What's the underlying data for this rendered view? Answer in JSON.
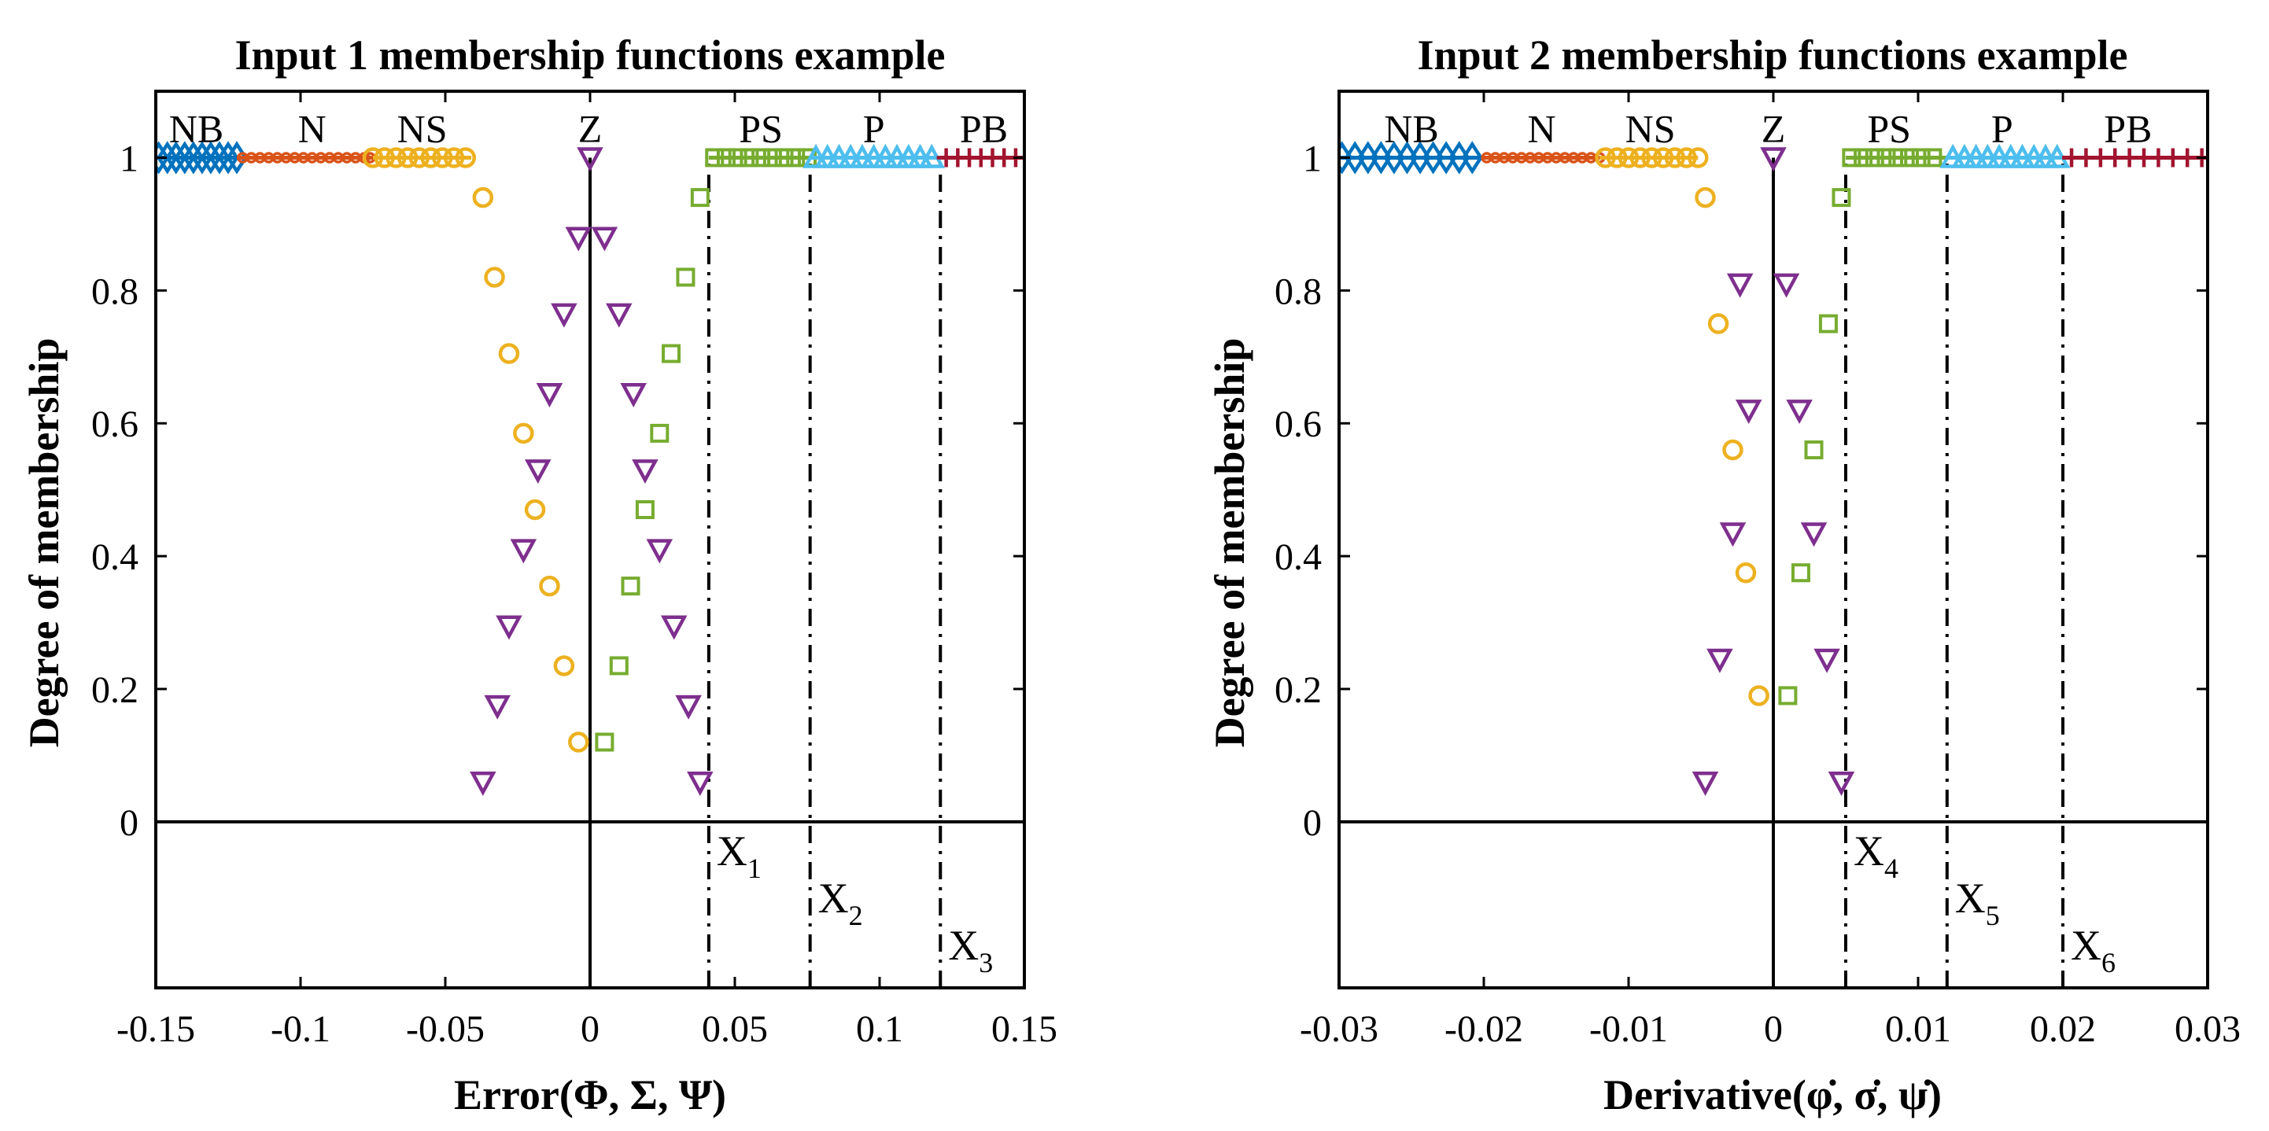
{
  "chart_data": [
    {
      "type": "scatter",
      "title": "Input 1 membership functions example",
      "xlabel_text": "Error",
      "xlabel_args": "(Φ, Σ, Ψ)",
      "ylabel": "Degree of membership",
      "xlim": [
        -0.15,
        0.15
      ],
      "ylim": [
        -0.25,
        1.1
      ],
      "x_ticks": [
        -0.15,
        -0.1,
        -0.05,
        0,
        0.05,
        0.1,
        0.15
      ],
      "x_tick_labels": [
        "-0.15",
        "-0.1",
        "-0.05",
        "0",
        "0.05",
        "0.1",
        "0.15"
      ],
      "y_ticks": [
        0,
        0.2,
        0.4,
        0.6,
        0.8,
        1
      ],
      "y_tick_labels": [
        "0",
        "0.2",
        "0.4",
        "0.6",
        "0.8",
        "1"
      ],
      "reference_lines": [
        {
          "label": "X",
          "sub": "1",
          "x": 0.041
        },
        {
          "label": "X",
          "sub": "2",
          "x": 0.076
        },
        {
          "label": "X",
          "sub": "3",
          "x": 0.121
        }
      ],
      "mf_labels": [
        {
          "text": "NB",
          "x": -0.136
        },
        {
          "text": "N",
          "x": -0.096
        },
        {
          "text": "NS",
          "x": -0.058
        },
        {
          "text": "Z",
          "x": 0.0
        },
        {
          "text": "PS",
          "x": 0.059
        },
        {
          "text": "P",
          "x": 0.098
        },
        {
          "text": "PB",
          "x": 0.136
        }
      ],
      "series": [
        {
          "name": "NB",
          "marker": "diamond",
          "color": "#0072BD",
          "line": [
            -0.15,
            -0.122
          ],
          "points": [
            [
              -0.149,
              1
            ],
            [
              -0.146,
              1
            ],
            [
              -0.143,
              1
            ],
            [
              -0.14,
              1
            ],
            [
              -0.137,
              1
            ],
            [
              -0.134,
              1
            ],
            [
              -0.131,
              1
            ],
            [
              -0.128,
              1
            ],
            [
              -0.125,
              1
            ],
            [
              -0.122,
              1
            ]
          ]
        },
        {
          "name": "N",
          "marker": "dot",
          "color": "#D95319",
          "line": [
            -0.122,
            -0.075
          ],
          "points": [
            [
              -0.12,
              1
            ],
            [
              -0.117,
              1
            ],
            [
              -0.114,
              1
            ],
            [
              -0.111,
              1
            ],
            [
              -0.108,
              1
            ],
            [
              -0.105,
              1
            ],
            [
              -0.102,
              1
            ],
            [
              -0.099,
              1
            ],
            [
              -0.096,
              1
            ],
            [
              -0.093,
              1
            ],
            [
              -0.09,
              1
            ],
            [
              -0.087,
              1
            ],
            [
              -0.084,
              1
            ],
            [
              -0.081,
              1
            ],
            [
              -0.078,
              1
            ],
            [
              -0.076,
              1
            ]
          ]
        },
        {
          "name": "NS",
          "marker": "circle",
          "color": "#EDB120",
          "line": [
            -0.075,
            -0.041
          ],
          "points": [
            [
              -0.075,
              1
            ],
            [
              -0.071,
              1
            ],
            [
              -0.067,
              1
            ],
            [
              -0.063,
              1
            ],
            [
              -0.059,
              1
            ],
            [
              -0.055,
              1
            ],
            [
              -0.051,
              1
            ],
            [
              -0.047,
              1
            ],
            [
              -0.043,
              1
            ],
            [
              -0.037,
              0.94
            ],
            [
              -0.033,
              0.82
            ],
            [
              -0.028,
              0.705
            ],
            [
              -0.023,
              0.585
            ],
            [
              -0.019,
              0.47
            ],
            [
              -0.014,
              0.355
            ],
            [
              -0.009,
              0.235
            ],
            [
              -0.004,
              0.12
            ]
          ]
        },
        {
          "name": "Z",
          "marker": "triangle-down",
          "color": "#7E2F8E",
          "line": null,
          "points": [
            [
              0,
              1
            ],
            [
              -0.004,
              0.88
            ],
            [
              0.005,
              0.88
            ],
            [
              -0.009,
              0.765
            ],
            [
              0.01,
              0.765
            ],
            [
              -0.014,
              0.645
            ],
            [
              0.015,
              0.645
            ],
            [
              -0.018,
              0.53
            ],
            [
              0.019,
              0.53
            ],
            [
              -0.023,
              0.41
            ],
            [
              0.024,
              0.41
            ],
            [
              -0.028,
              0.295
            ],
            [
              0.029,
              0.295
            ],
            [
              -0.032,
              0.175
            ],
            [
              0.034,
              0.175
            ],
            [
              -0.037,
              0.06
            ],
            [
              0.038,
              0.06
            ]
          ]
        },
        {
          "name": "PS",
          "marker": "square",
          "color": "#77AC30",
          "line": [
            0.041,
            0.076
          ],
          "points": [
            [
              0.005,
              0.12
            ],
            [
              0.01,
              0.235
            ],
            [
              0.014,
              0.355
            ],
            [
              0.019,
              0.47
            ],
            [
              0.024,
              0.585
            ],
            [
              0.028,
              0.705
            ],
            [
              0.033,
              0.82
            ],
            [
              0.038,
              0.94
            ],
            [
              0.043,
              1
            ],
            [
              0.047,
              1
            ],
            [
              0.051,
              1
            ],
            [
              0.055,
              1
            ],
            [
              0.059,
              1
            ],
            [
              0.063,
              1
            ],
            [
              0.067,
              1
            ],
            [
              0.071,
              1
            ],
            [
              0.075,
              1
            ]
          ]
        },
        {
          "name": "P",
          "marker": "triangle-up",
          "color": "#4DBEEE",
          "line": [
            0.076,
            0.121
          ],
          "points": [
            [
              0.078,
              1
            ],
            [
              0.082,
              1
            ],
            [
              0.086,
              1
            ],
            [
              0.09,
              1
            ],
            [
              0.094,
              1
            ],
            [
              0.098,
              1
            ],
            [
              0.102,
              1
            ],
            [
              0.106,
              1
            ],
            [
              0.11,
              1
            ],
            [
              0.114,
              1
            ],
            [
              0.118,
              1
            ]
          ]
        },
        {
          "name": "PB",
          "marker": "plus",
          "color": "#A2142F",
          "line": [
            0.121,
            0.154
          ],
          "points": [
            [
              0.123,
              1
            ],
            [
              0.127,
              1
            ],
            [
              0.131,
              1
            ],
            [
              0.135,
              1
            ],
            [
              0.139,
              1
            ],
            [
              0.143,
              1
            ],
            [
              0.147,
              1
            ],
            [
              0.151,
              1
            ]
          ]
        }
      ]
    },
    {
      "type": "scatter",
      "title": "Input 2 membership functions example",
      "xlabel_text": "Derivative",
      "xlabel_args": "(φ̇, σ̇, ψ̇)",
      "ylabel": "Degree of membership",
      "xlim": [
        -0.03,
        0.03
      ],
      "ylim": [
        -0.25,
        1.1
      ],
      "x_ticks": [
        -0.03,
        -0.02,
        -0.01,
        0,
        0.01,
        0.02,
        0.03
      ],
      "x_tick_labels": [
        "-0.03",
        "-0.02",
        "-0.01",
        "0",
        "0.01",
        "0.02",
        "0.03"
      ],
      "y_ticks": [
        0,
        0.2,
        0.4,
        0.6,
        0.8,
        1
      ],
      "y_tick_labels": [
        "0",
        "0.2",
        "0.4",
        "0.6",
        "0.8",
        "1"
      ],
      "reference_lines": [
        {
          "label": "X",
          "sub": "4",
          "x": 0.005
        },
        {
          "label": "X",
          "sub": "5",
          "x": 0.012
        },
        {
          "label": "X",
          "sub": "6",
          "x": 0.02
        }
      ],
      "mf_labels": [
        {
          "text": "NB",
          "x": -0.025
        },
        {
          "text": "N",
          "x": -0.016
        },
        {
          "text": "NS",
          "x": -0.0085
        },
        {
          "text": "Z",
          "x": 0.0
        },
        {
          "text": "PS",
          "x": 0.008
        },
        {
          "text": "P",
          "x": 0.0158
        },
        {
          "text": "PB",
          "x": 0.0245
        }
      ],
      "series": [
        {
          "name": "NB",
          "marker": "diamond",
          "color": "#0072BD",
          "line": [
            -0.03,
            -0.02
          ],
          "points": [
            [
              -0.0298,
              1
            ],
            [
              -0.0289,
              1
            ],
            [
              -0.028,
              1
            ],
            [
              -0.0271,
              1
            ],
            [
              -0.0262,
              1
            ],
            [
              -0.0253,
              1
            ],
            [
              -0.0244,
              1
            ],
            [
              -0.0235,
              1
            ],
            [
              -0.0226,
              1
            ],
            [
              -0.0217,
              1
            ],
            [
              -0.0208,
              1
            ]
          ]
        },
        {
          "name": "N",
          "marker": "dot",
          "color": "#D95319",
          "line": [
            -0.02,
            -0.012
          ],
          "points": [
            [
              -0.0198,
              1
            ],
            [
              -0.0192,
              1
            ],
            [
              -0.0186,
              1
            ],
            [
              -0.018,
              1
            ],
            [
              -0.0174,
              1
            ],
            [
              -0.0168,
              1
            ],
            [
              -0.0162,
              1
            ],
            [
              -0.0156,
              1
            ],
            [
              -0.015,
              1
            ],
            [
              -0.0144,
              1
            ],
            [
              -0.0138,
              1
            ],
            [
              -0.0132,
              1
            ],
            [
              -0.0126,
              1
            ],
            [
              -0.012,
              1
            ]
          ]
        },
        {
          "name": "NS",
          "marker": "circle",
          "color": "#EDB120",
          "line": [
            -0.012,
            -0.0052
          ],
          "points": [
            [
              -0.0116,
              1
            ],
            [
              -0.0108,
              1
            ],
            [
              -0.01,
              1
            ],
            [
              -0.0092,
              1
            ],
            [
              -0.0084,
              1
            ],
            [
              -0.0076,
              1
            ],
            [
              -0.0068,
              1
            ],
            [
              -0.006,
              1
            ],
            [
              -0.0052,
              1
            ],
            [
              -0.0047,
              0.94
            ],
            [
              -0.0038,
              0.75
            ],
            [
              -0.0028,
              0.56
            ],
            [
              -0.0019,
              0.375
            ],
            [
              -0.001,
              0.19
            ]
          ]
        },
        {
          "name": "Z",
          "marker": "triangle-down",
          "color": "#7E2F8E",
          "line": null,
          "points": [
            [
              0,
              1
            ],
            [
              -0.0023,
              0.81
            ],
            [
              0.0009,
              0.81
            ],
            [
              -0.0017,
              0.62
            ],
            [
              0.0018,
              0.62
            ],
            [
              -0.0028,
              0.435
            ],
            [
              0.0028,
              0.435
            ],
            [
              -0.0037,
              0.245
            ],
            [
              0.0037,
              0.245
            ],
            [
              -0.0047,
              0.06
            ],
            [
              0.0047,
              0.06
            ]
          ]
        },
        {
          "name": "PS",
          "marker": "square",
          "color": "#77AC30",
          "line": [
            0.005,
            0.012
          ],
          "points": [
            [
              0.001,
              0.19
            ],
            [
              0.0019,
              0.375
            ],
            [
              0.0028,
              0.56
            ],
            [
              0.0038,
              0.75
            ],
            [
              0.0047,
              0.94
            ],
            [
              0.0054,
              1
            ],
            [
              0.0062,
              1
            ],
            [
              0.007,
              1
            ],
            [
              0.0078,
              1
            ],
            [
              0.0086,
              1
            ],
            [
              0.0094,
              1
            ],
            [
              0.0102,
              1
            ],
            [
              0.011,
              1
            ]
          ]
        },
        {
          "name": "P",
          "marker": "triangle-up",
          "color": "#4DBEEE",
          "line": [
            0.012,
            0.02
          ],
          "points": [
            [
              0.0124,
              1
            ],
            [
              0.0132,
              1
            ],
            [
              0.014,
              1
            ],
            [
              0.0148,
              1
            ],
            [
              0.0156,
              1
            ],
            [
              0.0164,
              1
            ],
            [
              0.0172,
              1
            ],
            [
              0.018,
              1
            ],
            [
              0.0188,
              1
            ],
            [
              0.0196,
              1
            ]
          ]
        },
        {
          "name": "PB",
          "marker": "plus",
          "color": "#A2142F",
          "line": [
            0.02,
            0.0305
          ],
          "points": [
            [
              0.0206,
              1
            ],
            [
              0.0216,
              1
            ],
            [
              0.0226,
              1
            ],
            [
              0.0236,
              1
            ],
            [
              0.0246,
              1
            ],
            [
              0.0256,
              1
            ],
            [
              0.0266,
              1
            ],
            [
              0.0276,
              1
            ],
            [
              0.0286,
              1
            ],
            [
              0.0296,
              1
            ],
            [
              0.0304,
              1
            ]
          ]
        }
      ]
    }
  ]
}
